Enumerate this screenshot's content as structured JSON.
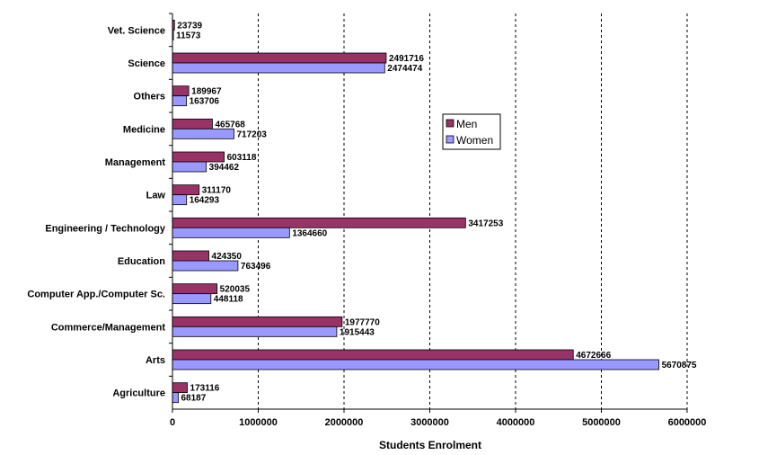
{
  "chart_data": {
    "type": "bar",
    "orientation": "horizontal",
    "title": "",
    "xlabel": "Students Enrolment",
    "ylabel": "",
    "xlim": [
      0,
      6000000
    ],
    "xticks": [
      0,
      1000000,
      2000000,
      3000000,
      4000000,
      5000000,
      6000000
    ],
    "xtick_labels": [
      "0",
      "1000000",
      "2000000",
      "3000000",
      "4000000",
      "5000000",
      "6000000"
    ],
    "grid": "vertical dashed",
    "legend_position": "right-center",
    "categories": [
      "Agriculture",
      "Arts",
      "Commerce/Management",
      "Computer App./Computer Sc.",
      "Education",
      "Engineering / Technology",
      "Law",
      "Management",
      "Medicine",
      "Others",
      "Science",
      "Vet. Science"
    ],
    "series": [
      {
        "name": "Men",
        "color": "#993366",
        "values": [
          173116,
          4672666,
          1977770,
          520035,
          424350,
          3417253,
          311170,
          603118,
          465768,
          189967,
          2491716,
          23739
        ],
        "labels": [
          "173116",
          "4672666",
          "1977770",
          "520035",
          "424350",
          "3417253",
          "311170",
          "603118",
          "465768",
          "189967",
          "2491716",
          "23739"
        ]
      },
      {
        "name": "Women",
        "color": "#9999FF",
        "values": [
          68187,
          5670875,
          1915443,
          448118,
          763496,
          1364660,
          164293,
          394462,
          717203,
          163706,
          2474474,
          11573
        ],
        "labels": [
          "68187",
          "5670875",
          "1915443",
          "448118",
          "763496",
          "1364660",
          "164293",
          "394462",
          "717203",
          "163706",
          "2474474",
          "11573"
        ]
      }
    ]
  }
}
